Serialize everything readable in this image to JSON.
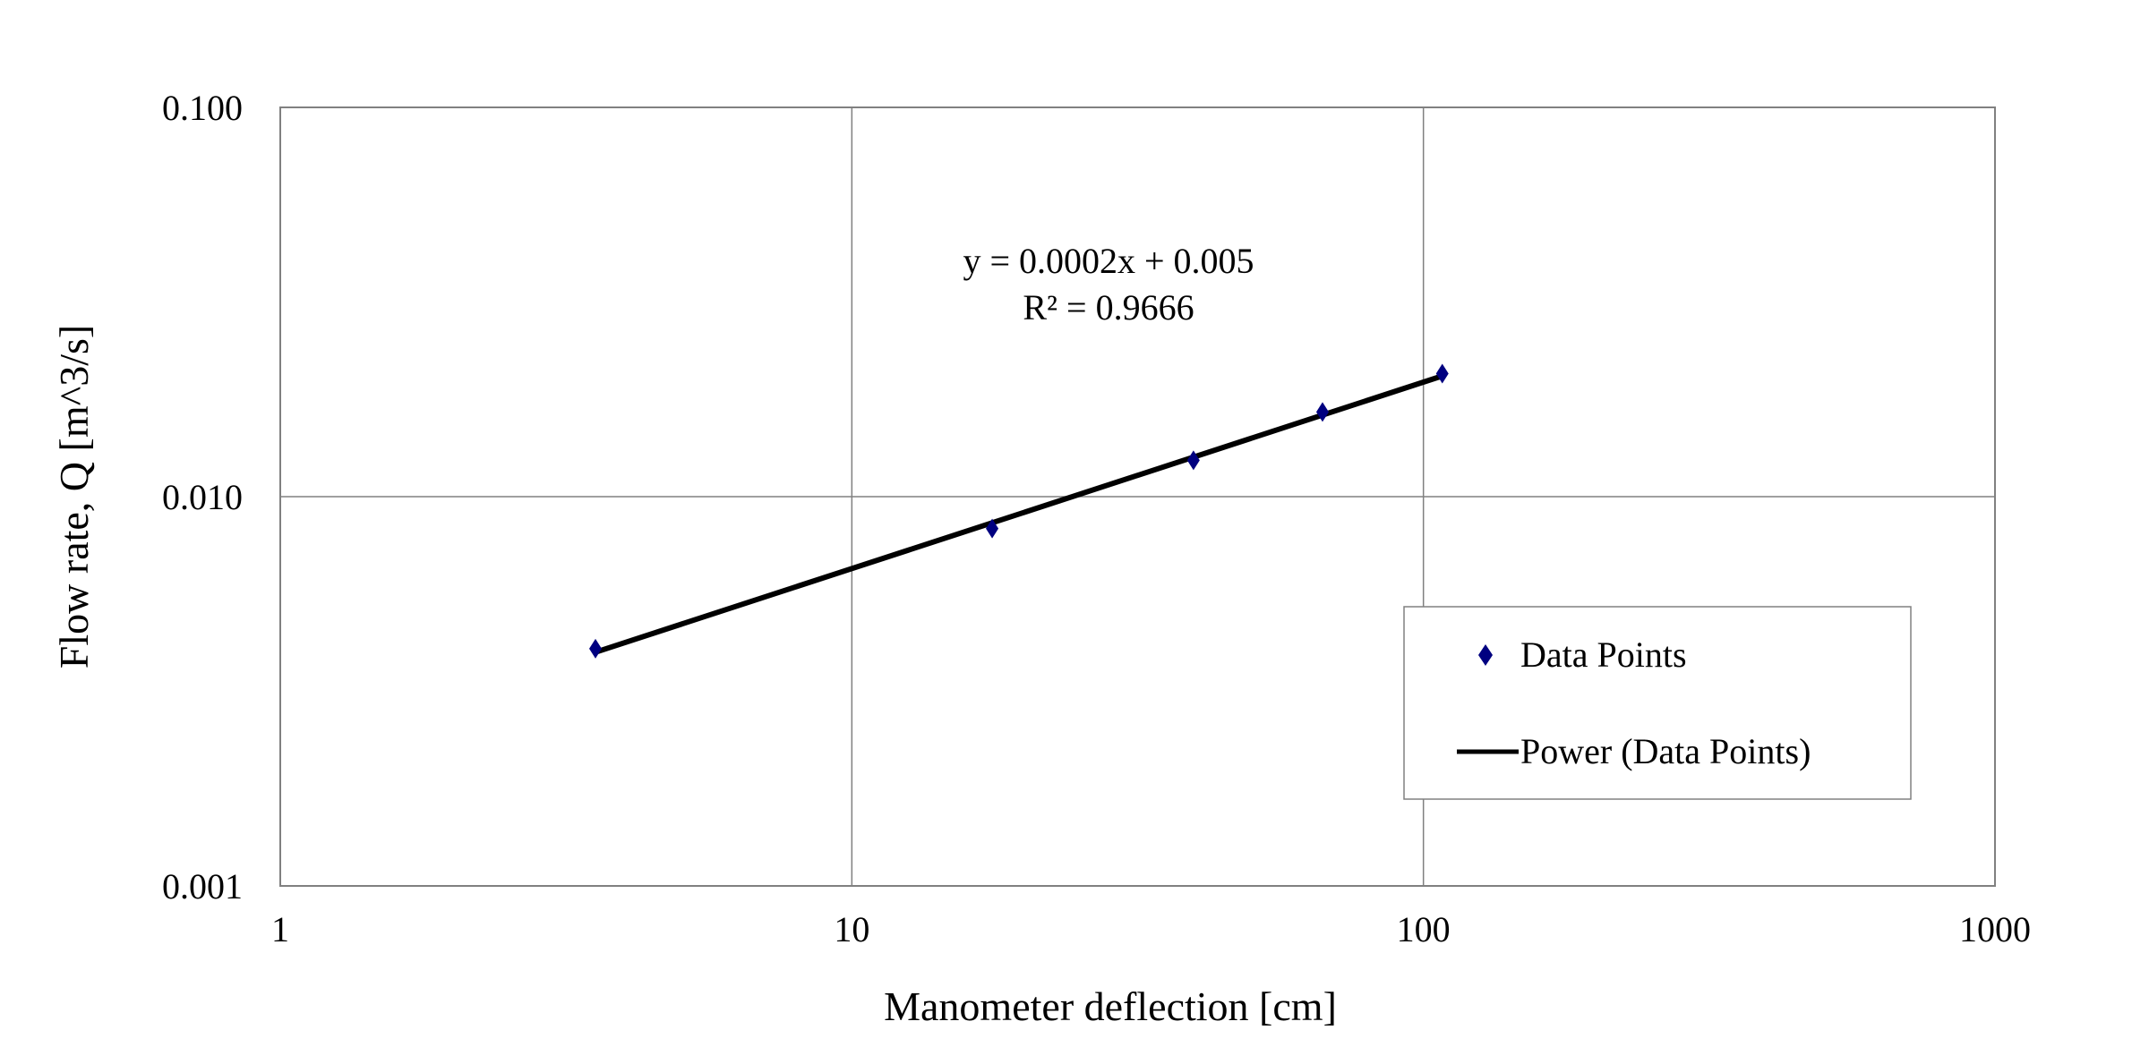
{
  "chart_data": {
    "type": "scatter",
    "title": "",
    "xlabel": "Manometer deflection [cm]",
    "ylabel": "Flow rate, Q [m^3/s]",
    "x_scale": "log",
    "y_scale": "log",
    "xlim": [
      1,
      1000
    ],
    "ylim": [
      0.001,
      0.1
    ],
    "x_ticks": [
      "1",
      "10",
      "100",
      "1000"
    ],
    "y_ticks": [
      "0.001",
      "0.010",
      "0.100"
    ],
    "grid": true,
    "legend_position": "right",
    "series": [
      {
        "name": "Data Points",
        "marker": "diamond",
        "color": "#000080",
        "x": [
          3.56,
          17.6,
          39.6,
          66.6,
          107.9
        ],
        "y": [
          0.00407,
          0.00828,
          0.0124,
          0.0165,
          0.0207
        ]
      },
      {
        "name": "Power (Data Points)",
        "type": "trendline",
        "color": "#000000"
      }
    ],
    "annotations": [
      "y = 0.0002x + 0.005",
      "R² = 0.9666"
    ]
  }
}
